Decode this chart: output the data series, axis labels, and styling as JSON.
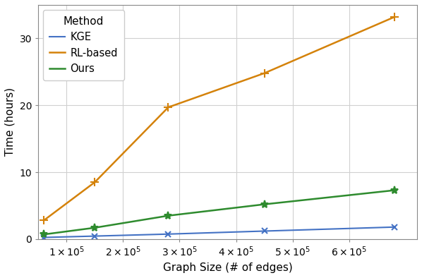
{
  "title": "",
  "xlabel": "Graph Size (# of edges)",
  "ylabel": "Time (hours)",
  "xlim": [
    50000,
    720000
  ],
  "ylim": [
    0,
    35
  ],
  "legend_title": "Method",
  "series": [
    {
      "label": "KGE",
      "color": "#4472c4",
      "marker": "x",
      "markersize": 6,
      "linewidth": 1.5,
      "x": [
        60000,
        150000,
        280000,
        450000,
        680000
      ],
      "y": [
        0.25,
        0.45,
        0.75,
        1.2,
        1.8
      ]
    },
    {
      "label": "RL-based",
      "color": "#d4820a",
      "marker": "+",
      "markersize": 9,
      "linewidth": 1.8,
      "x": [
        60000,
        150000,
        280000,
        450000,
        680000
      ],
      "y": [
        2.8,
        8.5,
        19.7,
        24.8,
        33.2
      ]
    },
    {
      "label": "Ours",
      "color": "#2e8b2e",
      "marker": "*",
      "markersize": 8,
      "linewidth": 1.8,
      "x": [
        60000,
        150000,
        280000,
        450000,
        680000
      ],
      "y": [
        0.7,
        1.7,
        3.5,
        5.2,
        7.3
      ]
    }
  ],
  "background_color": "#ffffff",
  "plot_bg_color": "#ffffff",
  "yticks": [
    0,
    10,
    20,
    30
  ],
  "xtick_positions": [
    100000,
    200000,
    300000,
    400000,
    500000,
    600000
  ],
  "grid_color": "#d0d0d0",
  "spine_color": "#888888"
}
